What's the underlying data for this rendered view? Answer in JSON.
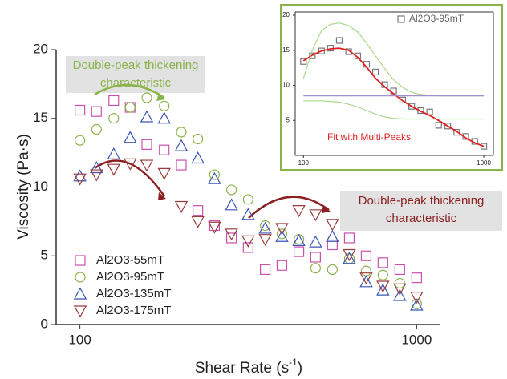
{
  "chart_data": [
    {
      "type": "scatter",
      "x_scale": "log",
      "legend": "lower left",
      "y_label": "Viscosity (Pa·s)",
      "x_label": [
        "Shear Rate (s",
        "-1",
        ")"
      ],
      "xlim": [
        85,
        1170
      ],
      "ylim": [
        0,
        20
      ],
      "xticks": [
        100,
        1000
      ],
      "yticks": [
        0,
        5,
        10,
        15,
        20
      ],
      "x": [
        100,
        112,
        126,
        141,
        158,
        178,
        200,
        224,
        251,
        282,
        316,
        355,
        398,
        447,
        501,
        562,
        631,
        708,
        794,
        891,
        1000
      ],
      "series": [
        {
          "name": "Al2O3-55mT",
          "color": "#cc4fae",
          "marker": "square",
          "values": [
            15.6,
            15.5,
            16.3,
            15.8,
            13.1,
            12.7,
            11.6,
            8.3,
            7.2,
            6.3,
            5.6,
            4.0,
            4.3,
            5.3,
            4.9,
            5.8,
            6.3,
            5.0,
            4.5,
            4.0,
            3.4
          ]
        },
        {
          "name": "Al2O3-95mT",
          "color": "#8ab34a",
          "marker": "circle",
          "values": [
            13.4,
            14.2,
            15.0,
            15.8,
            16.5,
            15.9,
            14.0,
            13.5,
            10.9,
            9.8,
            9.1,
            7.2,
            6.6,
            6.2,
            4.1,
            4.0,
            4.8,
            3.9,
            3.6,
            3.0,
            1.5
          ]
        },
        {
          "name": "Al2O3-135mT",
          "color": "#3a55b5",
          "marker": "triangle",
          "values": [
            10.8,
            11.4,
            12.4,
            13.6,
            15.1,
            15.0,
            13.0,
            12.1,
            10.6,
            8.7,
            8.0,
            7.0,
            6.4,
            6.1,
            6.0,
            6.4,
            4.8,
            3.1,
            2.5,
            2.1,
            1.4
          ]
        },
        {
          "name": "Al2O3-175mT",
          "color": "#9a3a3a",
          "marker": "triangle-down",
          "values": [
            10.6,
            10.9,
            11.3,
            11.7,
            11.6,
            11.0,
            8.6,
            7.5,
            7.1,
            6.6,
            6.1,
            6.2,
            7.0,
            8.3,
            8.0,
            7.3,
            5.1,
            3.4,
            2.8,
            2.6,
            2.0
          ]
        }
      ],
      "annotations": [
        {
          "lines": [
            "Double-peak thickening",
            "characteristic"
          ],
          "color": "#8ab34a"
        },
        {
          "lines": [
            "Double-peak thickening",
            "characteristic"
          ],
          "color": "#8b2020"
        }
      ]
    },
    {
      "type": "scatter",
      "x_scale": "log",
      "legend": "upper right",
      "xlim": [
        90,
        1130
      ],
      "ylim": [
        0,
        20
      ],
      "xticks": [
        100,
        1000
      ],
      "yticks": [
        5,
        10,
        15,
        20
      ],
      "x": [
        100,
        112,
        126,
        141,
        158,
        178,
        200,
        224,
        251,
        282,
        316,
        355,
        398,
        447,
        501,
        562,
        631,
        708,
        794,
        891,
        1000
      ],
      "series": [
        {
          "name": "Al2O3-95mT",
          "color": "#777777",
          "marker": "square",
          "values": [
            13.4,
            14.2,
            14.9,
            15.3,
            16.4,
            14.8,
            14.2,
            13.0,
            11.9,
            10.1,
            9.2,
            7.9,
            7.0,
            6.4,
            6.2,
            4.3,
            4.2,
            3.3,
            2.7,
            2.0,
            1.3
          ]
        },
        {
          "name": "Fit with Multi-Peaks",
          "color": "#e02020",
          "values": [
            13.5,
            14.3,
            14.9,
            15.2,
            15.3,
            15.0,
            14.0,
            12.6,
            11.0,
            9.8,
            8.8,
            7.8,
            7.0,
            6.3,
            5.7,
            5.0,
            4.2,
            3.4,
            2.5,
            1.8,
            1.3
          ]
        },
        {
          "color": "#a8d88a",
          "values": [
            11.0,
            15.0,
            17.8,
            18.7,
            18.9,
            18.5,
            17.6,
            16.0,
            14.2,
            12.4,
            10.8,
            9.7,
            9.0,
            8.7,
            8.6,
            8.5,
            8.5,
            8.5,
            8.5,
            8.5,
            8.5
          ]
        },
        {
          "color": "#a8d88a",
          "values": [
            7.8,
            7.8,
            7.8,
            7.7,
            7.6,
            7.3,
            6.9,
            6.4,
            5.9,
            5.5,
            5.3,
            5.2,
            5.2,
            5.2,
            5.2,
            5.2,
            5.2,
            5.2,
            5.2,
            5.2,
            5.2
          ]
        },
        {
          "color": "#9f8fd0",
          "values": [
            8.5,
            8.5,
            8.5,
            8.5,
            8.5,
            8.5,
            8.5,
            8.5,
            8.5,
            8.5,
            8.5,
            8.5,
            8.5,
            8.5,
            8.5,
            8.5,
            8.5,
            8.5,
            8.5,
            8.5,
            8.5
          ]
        }
      ]
    }
  ]
}
